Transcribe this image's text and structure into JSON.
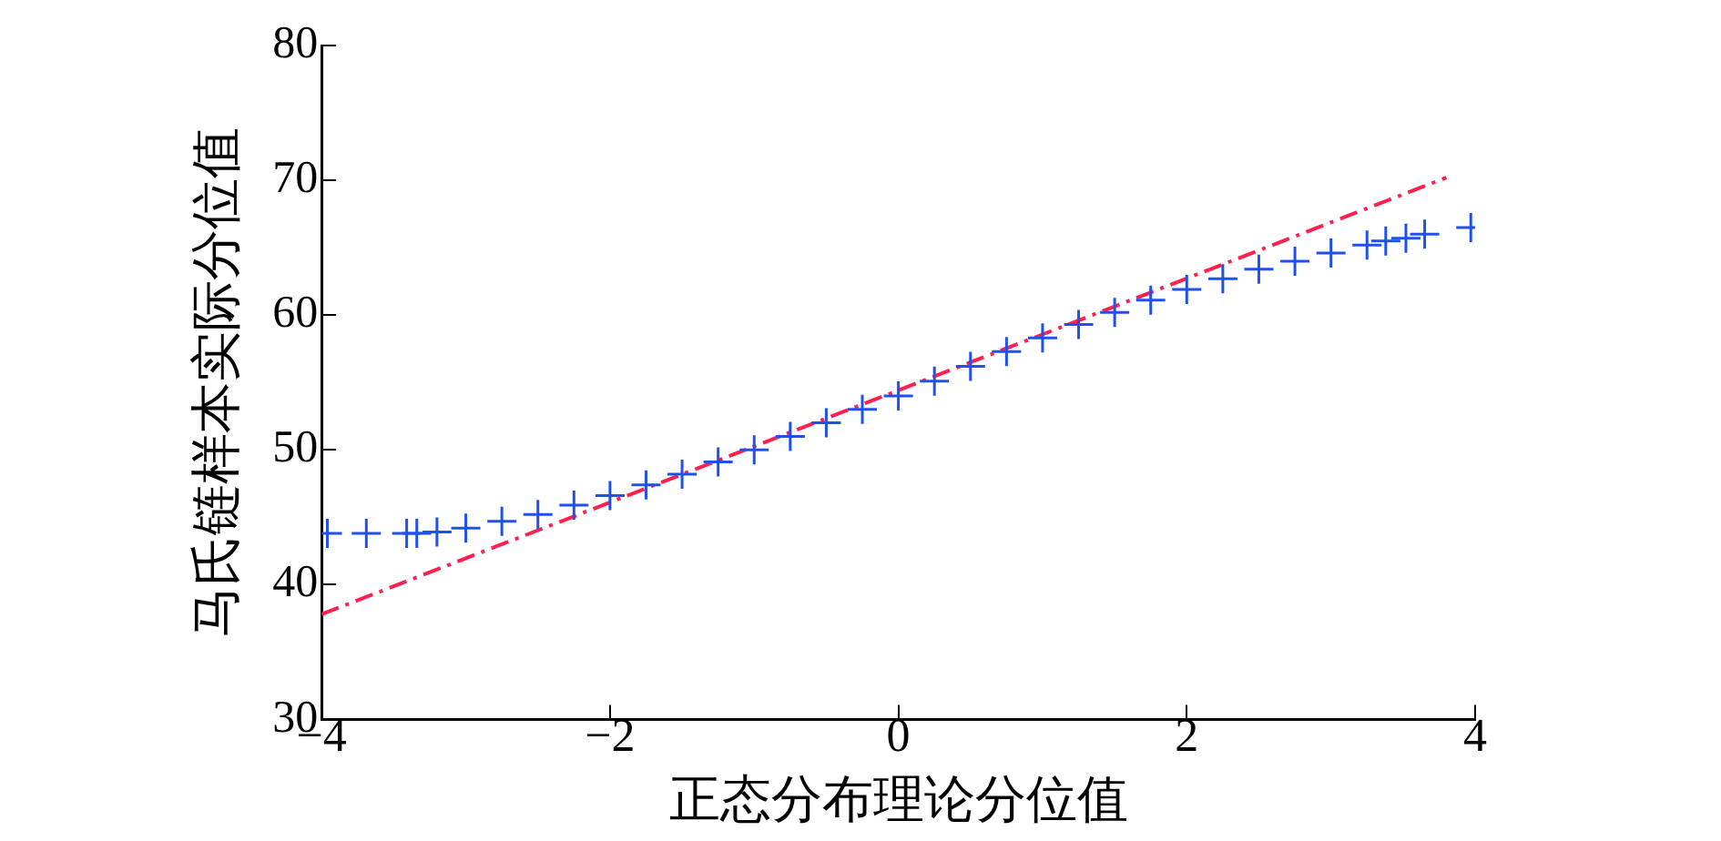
{
  "chart_data": {
    "type": "scatter",
    "xlabel": "正态分布理论分位值",
    "ylabel": "马氏链样本实际分位值",
    "xlim": [
      -4,
      4
    ],
    "ylim": [
      30,
      80
    ],
    "xticks": [
      {
        "value": -4,
        "label": "−4"
      },
      {
        "value": -2,
        "label": "−2"
      },
      0,
      2,
      4
    ],
    "yticks": [
      30,
      40,
      50,
      60,
      70,
      80
    ],
    "grid": false,
    "legend": false,
    "series": [
      {
        "type": "scatter",
        "marker": "cross",
        "color": "#2050f0",
        "x": [
          -3.96,
          -3.69,
          -3.41,
          -3.34,
          -3.2,
          -3.0,
          -2.75,
          -2.5,
          -2.25,
          -2.0,
          -1.75,
          -1.5,
          -1.25,
          -1.0,
          -0.75,
          -0.5,
          -0.25,
          0,
          0.25,
          0.5,
          0.75,
          1.0,
          1.25,
          1.5,
          1.75,
          2.0,
          2.25,
          2.5,
          2.75,
          3.0,
          3.25,
          3.38,
          3.52,
          3.65,
          3.97
        ],
        "values": [
          43.8,
          43.8,
          43.8,
          43.8,
          43.9,
          44.2,
          44.7,
          45.2,
          45.9,
          46.6,
          47.4,
          48.2,
          49.1,
          50.0,
          51.0,
          52.0,
          53.0,
          54.0,
          55.1,
          56.2,
          57.3,
          58.3,
          59.3,
          60.2,
          61.1,
          61.9,
          62.7,
          63.4,
          64.0,
          64.6,
          65.2,
          65.5,
          65.7,
          66.0,
          66.5
        ]
      },
      {
        "type": "line",
        "line_style": "dashed",
        "color": "#ff2050",
        "x": [
          -4,
          3.8
        ],
        "values": [
          37.8,
          70.2
        ]
      }
    ]
  }
}
